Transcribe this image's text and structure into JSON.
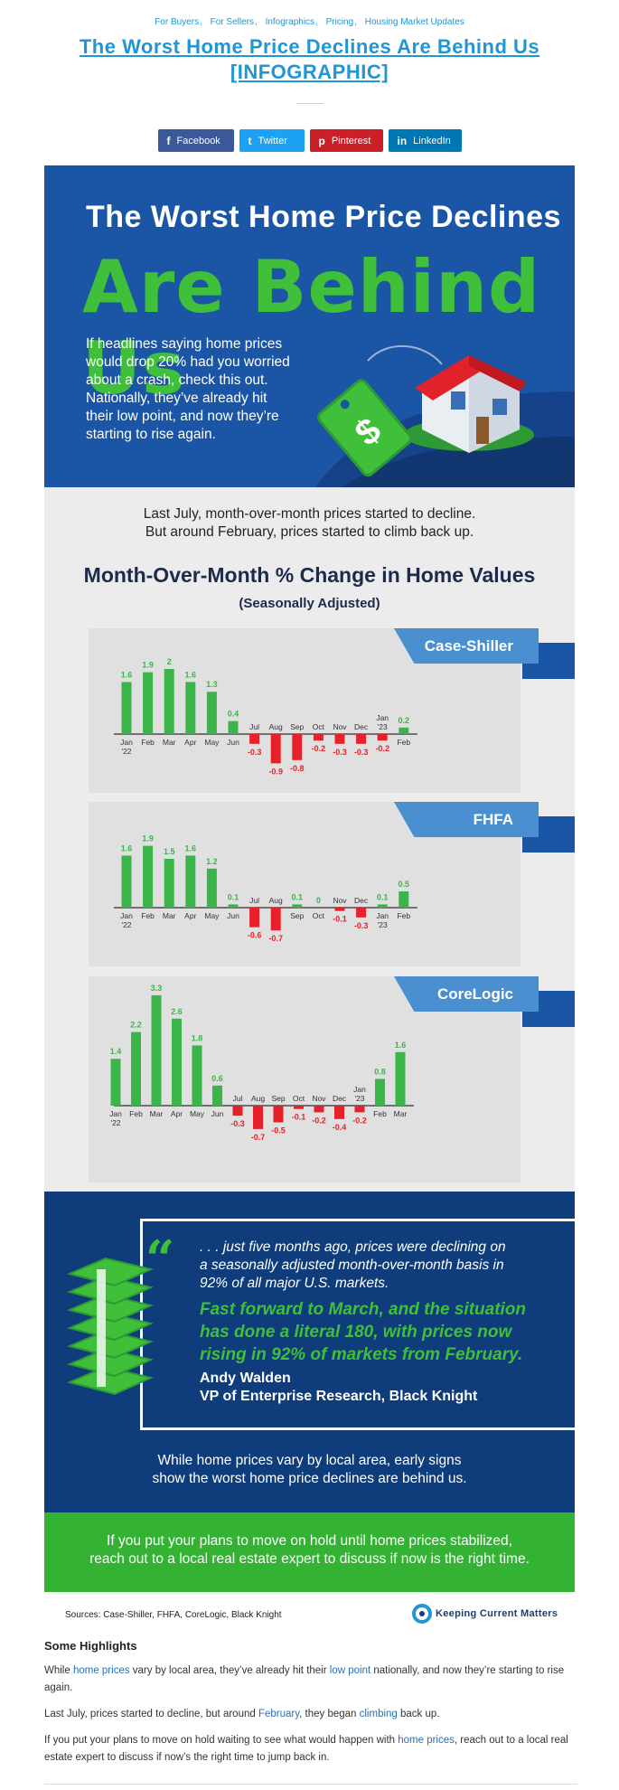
{
  "categories": [
    "For Buyers",
    "For Sellers",
    "Infographics",
    "Pricing",
    "Housing Market Updates"
  ],
  "title_line1": "The Worst Home Price Declines Are Behind Us",
  "title_line2": "[INFOGRAPHIC]",
  "share": {
    "facebook": {
      "icon": "f",
      "label": "Facebook"
    },
    "twitter": {
      "icon": "t",
      "label": "Twitter"
    },
    "pinterest": {
      "icon": "p",
      "label": "Pinterest"
    },
    "linkedin": {
      "icon": "in",
      "label": "LinkedIn"
    }
  },
  "hero": {
    "headline": "The Worst Home Price Declines",
    "headline_big": "Are Behind Us",
    "text_lines": [
      "If headlines saying home prices",
      "would drop 20% had you worried",
      "about a crash, check this out.",
      "Nationally, they’ve already hit",
      "their low point, and now they’re",
      "starting to rise again."
    ]
  },
  "intro_lines": [
    "Last July, month-over-month prices started to decline.",
    "But around February, prices started to climb back up."
  ],
  "chart_title": "Month-Over-Month % Change in Home Values",
  "chart_subtitle": "(Seasonally Adjusted)",
  "chart_data": [
    {
      "type": "bar",
      "title": "Case-Shiller",
      "categories": [
        "Jan '22",
        "Feb",
        "Mar",
        "Apr",
        "May",
        "Jun",
        "Jul",
        "Aug",
        "Sep",
        "Oct",
        "Nov",
        "Dec",
        "Jan '23",
        "Feb"
      ],
      "values": [
        1.6,
        1.9,
        2,
        1.6,
        1.3,
        0.4,
        -0.3,
        -0.9,
        -0.8,
        -0.2,
        -0.3,
        -0.3,
        -0.2,
        0.2
      ],
      "value_labels": [
        "1.6",
        "1.9",
        "2",
        "1.6",
        "1.3",
        "0.4",
        "-0.3",
        "-0.9",
        "-0.8",
        "-0.2",
        "-0.3",
        "-0.3",
        "-0.2",
        "0.2"
      ],
      "xlabel": "",
      "ylabel": "",
      "colors": {
        "positive": "#3bb54a",
        "negative": "#e8202a"
      }
    },
    {
      "type": "bar",
      "title": "FHFA",
      "categories": [
        "Jan '22",
        "Feb",
        "Mar",
        "Apr",
        "May",
        "Jun",
        "Jul",
        "Aug",
        "Sep",
        "Oct",
        "Nov",
        "Dec",
        "Jan '23",
        "Feb"
      ],
      "values": [
        1.6,
        1.9,
        1.5,
        1.6,
        1.2,
        0.1,
        -0.6,
        -0.7,
        0.1,
        0,
        -0.1,
        -0.3,
        0.1,
        0.5
      ],
      "value_labels": [
        "1.6",
        "1.9",
        "1.5",
        "1.6",
        "1.2",
        "0.1",
        "-0.6",
        "-0.7",
        "0.1",
        "0",
        "-0.1",
        "-0.3",
        "0.1",
        "0.5"
      ],
      "xlabel": "",
      "ylabel": "",
      "colors": {
        "positive": "#3bb54a",
        "negative": "#e8202a"
      }
    },
    {
      "type": "bar",
      "title": "CoreLogic",
      "categories": [
        "Jan '22",
        "Feb",
        "Mar",
        "Apr",
        "May",
        "Jun",
        "Jul",
        "Aug",
        "Sep",
        "Oct",
        "Nov",
        "Dec",
        "Jan '23",
        "Feb",
        "Mar"
      ],
      "values": [
        1.4,
        2.2,
        3.3,
        2.6,
        1.8,
        0.6,
        -0.3,
        -0.7,
        -0.5,
        -0.1,
        -0.2,
        -0.4,
        -0.2,
        0.8,
        1.6
      ],
      "value_labels": [
        "1.4",
        "2.2",
        "3.3",
        "2.6",
        "1.8",
        "0.6",
        "-0.3",
        "-0.7",
        "-0.5",
        "-0.1",
        "-0.2",
        "-0.4",
        "-0.2",
        "0.8",
        "1.6"
      ],
      "xlabel": "",
      "ylabel": "",
      "colors": {
        "positive": "#3bb54a",
        "negative": "#e8202a"
      }
    }
  ],
  "quote": {
    "mark": "“",
    "lines": [
      ". . . just five months ago, prices were declining on",
      "a seasonally adjusted month-over-month basis in",
      "92% of all major U.S. markets."
    ],
    "green_lines": [
      "Fast forward to March, and the situation",
      "has done a literal 180, with prices now",
      "rising in 92% of markets from February."
    ],
    "author": "Andy Walden",
    "author_title": "VP of Enterprise Research, Black Knight"
  },
  "vary_lines": [
    "While home prices vary by local area, early signs",
    "show the worst home price declines are behind us."
  ],
  "cta_lines": [
    "If you put your plans to move on hold until home prices stabilized,",
    "reach out to a local real estate expert to discuss if now is the right time."
  ],
  "sources": "Sources: Case-Shiller, FHFA, CoreLogic, Black Knight",
  "brand": "Keeping Current Matters",
  "highlights_title": "Some Highlights",
  "hl1": {
    "a": "While ",
    "link1": "home prices",
    "b": " vary by local area, they’ve already hit their ",
    "link2": "low point",
    "c": " nationally, and now they’re starting to rise again."
  },
  "hl2": {
    "a": "Last July, prices started to decline, but around ",
    "link1": "February",
    "b": ", they began ",
    "link2": "climbing",
    "c": " back up."
  },
  "hl3": {
    "a": "If you put your plans to move on hold waiting to see what would happen with ",
    "link1": "home prices",
    "b": ", reach out to a local real estate expert to discuss if now’s the right time to jump back in."
  },
  "colors": {
    "link": "#2196d3",
    "hero_blue": "#1b56a6",
    "green": "#3fbf3a",
    "red": "#e8202a",
    "navy": "#0f3c7a"
  }
}
